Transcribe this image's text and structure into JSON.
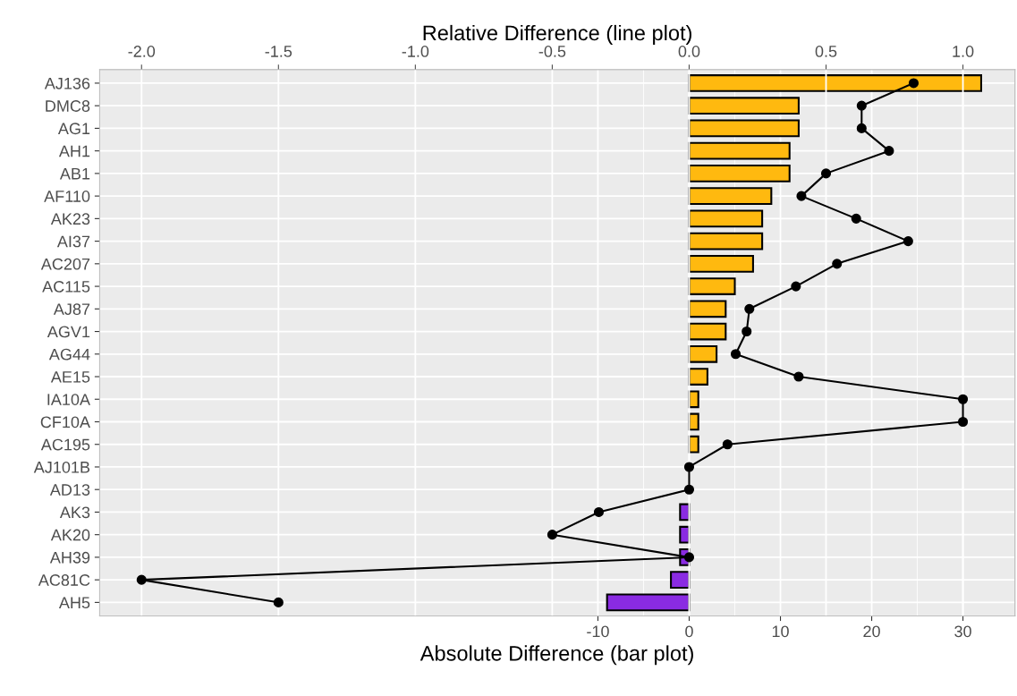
{
  "chart_data": {
    "type": "bar",
    "orientation": "horizontal",
    "categories": [
      "AJ136",
      "DMC8",
      "AG1",
      "AH1",
      "AB1",
      "AF110",
      "AK23",
      "AI37",
      "AC207",
      "AC115",
      "AJ87",
      "AGV1",
      "AG44",
      "AE15",
      "IA10A",
      "CF10A",
      "AC195",
      "AJ101B",
      "AD13",
      "AK3",
      "AK20",
      "AH39",
      "AC81C",
      "AH5"
    ],
    "series": [
      {
        "values": [
          32,
          12,
          12,
          11,
          11,
          9,
          8,
          8,
          7,
          5,
          4,
          4,
          3,
          2,
          1,
          1,
          1,
          0,
          0,
          -1,
          -1,
          -1,
          -2,
          -9
        ],
        "colors": [
          "#ffb90f",
          "#ffb90f",
          "#ffb90f",
          "#ffb90f",
          "#ffb90f",
          "#ffb90f",
          "#ffb90f",
          "#ffb90f",
          "#ffb90f",
          "#ffb90f",
          "#ffb90f",
          "#ffb90f",
          "#ffb90f",
          "#ffb90f",
          "#ffb90f",
          "#ffb90f",
          "#ffb90f",
          "#ffb90f",
          "#ffb90f",
          "#8a2be2",
          "#8a2be2",
          "#8a2be2",
          "#8a2be2",
          "#8a2be2"
        ]
      },
      {
        "type": "line",
        "axis": "x2",
        "color": "#000000",
        "marker": "circle",
        "values": [
          0.82,
          0.63,
          0.63,
          0.73,
          0.5,
          0.41,
          0.61,
          0.8,
          0.54,
          0.39,
          0.22,
          0.21,
          0.17,
          0.4,
          1.0,
          1.0,
          0.14,
          0,
          0,
          -0.33,
          -0.5,
          0,
          -2.0,
          -1.5
        ]
      }
    ],
    "xlabel": "Absolute Difference (bar plot)",
    "x2label": "Relative Difference (line plot)",
    "xlim": [
      -64.6,
      35.7
    ],
    "xticks": [
      -10,
      0,
      10,
      20,
      30
    ],
    "x2lim": [
      -2.153,
      1.19
    ],
    "x2ticks": [
      {
        "value": -2.0,
        "label": "-2.0"
      },
      {
        "value": -1.5,
        "label": "-1.5"
      },
      {
        "value": -1.0,
        "label": "-1.0"
      },
      {
        "value": -0.5,
        "label": "-0.5"
      },
      {
        "value": 0.0,
        "label": "0.0"
      },
      {
        "value": 0.5,
        "label": "0.5"
      },
      {
        "value": 1.0,
        "label": "1.0"
      }
    ],
    "grid": true
  }
}
